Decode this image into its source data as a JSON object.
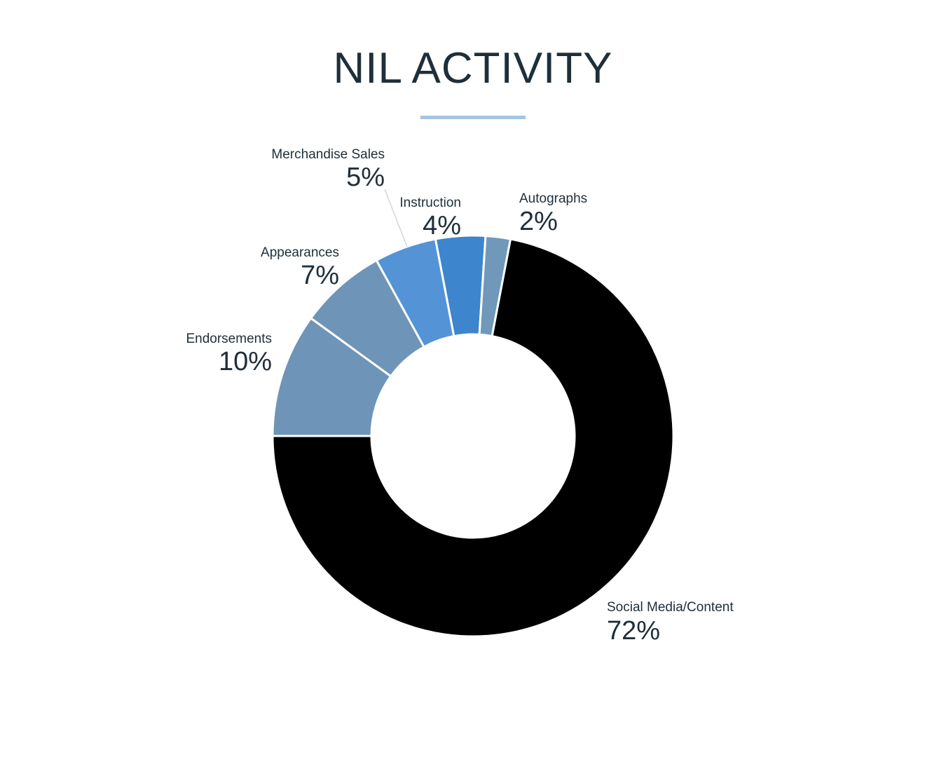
{
  "chart_data": {
    "type": "pie",
    "title": "NIL ACTIVITY",
    "donut": true,
    "categories": [
      "Social Media/Content",
      "Endorsements",
      "Appearances",
      "Merchandise Sales",
      "Instruction",
      "Autographs"
    ],
    "values": [
      72,
      10,
      7,
      5,
      4,
      2
    ],
    "value_labels": [
      "72%",
      "10%",
      "7%",
      "5%",
      "4%",
      "2%"
    ],
    "colors": [
      "#000000",
      "#6e95b8",
      "#6e95b8",
      "#5494d6",
      "#3d85cd",
      "#7098bb"
    ],
    "accent_color": "#a4c4e4",
    "text_color": "#1f2f3a"
  }
}
